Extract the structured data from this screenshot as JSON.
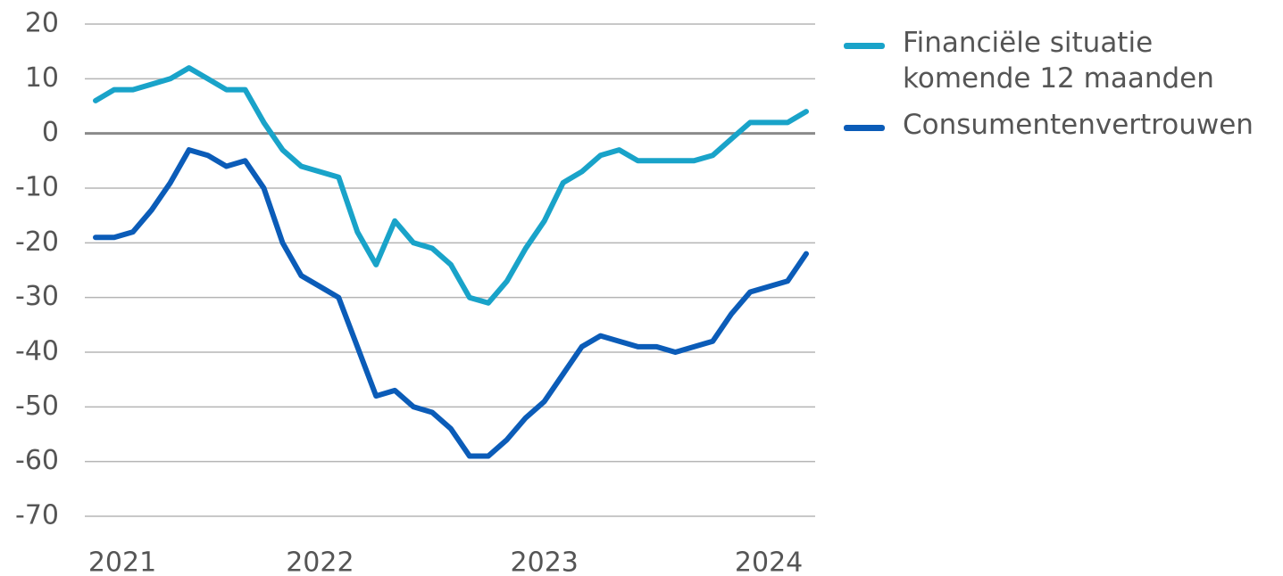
{
  "chart_data": {
    "type": "line",
    "categories": [
      "2021",
      null,
      null,
      null,
      null,
      null,
      null,
      null,
      null,
      null,
      null,
      null,
      "2022",
      null,
      null,
      null,
      null,
      null,
      null,
      null,
      null,
      null,
      null,
      null,
      "2023",
      null,
      null,
      null,
      null,
      null,
      null,
      null,
      null,
      null,
      null,
      null,
      "2024",
      null,
      null
    ],
    "series": [
      {
        "name": "Financiële situatie komende 12 maanden",
        "color": "#19a3c9",
        "values": [
          6,
          8,
          8,
          9,
          10,
          12,
          10,
          8,
          8,
          2,
          -3,
          -6,
          -7,
          -8,
          -18,
          -24,
          -16,
          -20,
          -21,
          -24,
          -30,
          -31,
          -27,
          -21,
          -16,
          -9,
          -7,
          -4,
          -3,
          -5,
          -5,
          -5,
          -5,
          -4,
          -1,
          2,
          2,
          2,
          4
        ]
      },
      {
        "name": "Consumentenvertrouwen",
        "color": "#0b5cb8",
        "values": [
          -19,
          -19,
          -18,
          -14,
          -9,
          -3,
          -4,
          -6,
          -5,
          -10,
          -20,
          -26,
          -28,
          -30,
          -39,
          -48,
          -47,
          -50,
          -51,
          -54,
          -59,
          -59,
          -56,
          -52,
          -49,
          -44,
          -39,
          -37,
          -38,
          -39,
          -39,
          -40,
          -39,
          -38,
          -33,
          -29,
          -28,
          -27,
          -22
        ]
      }
    ],
    "ylim": [
      -70,
      20
    ],
    "yticks": [
      20,
      10,
      0,
      -10,
      -20,
      -30,
      -40,
      -50,
      -60,
      -70
    ],
    "grid": true,
    "legend": "right"
  }
}
